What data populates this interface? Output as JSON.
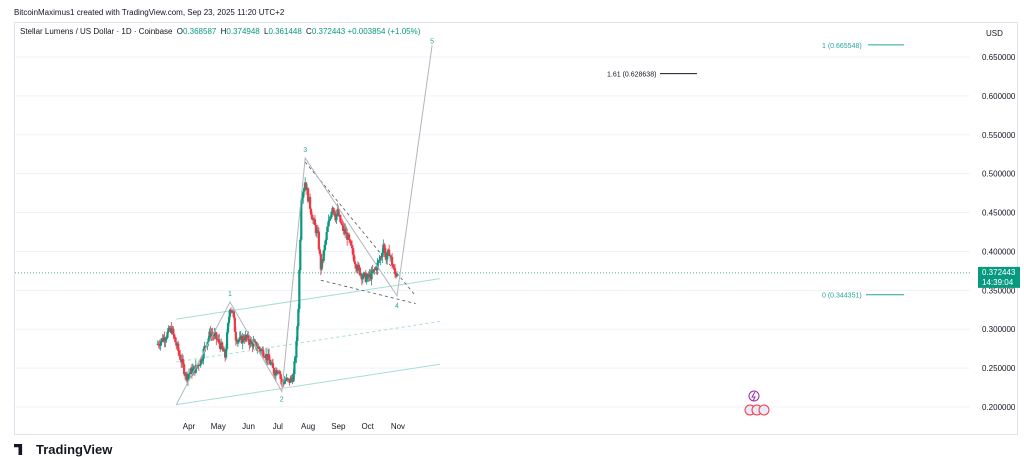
{
  "header": {
    "attribution": "BitcoinMaximus1 created with TradingView.com, Sep 23, 2025 11:20 UTC+2",
    "symbol": "Stellar Lumens / US Dollar · 1D · Coinbase",
    "ohlc": [
      {
        "key": "O",
        "value": "0.368587"
      },
      {
        "key": "H",
        "value": "0.374948"
      },
      {
        "key": "L",
        "value": "0.361448"
      },
      {
        "key": "C",
        "value": "0.372443"
      }
    ],
    "change": "+0.003854 (+1.05%)"
  },
  "price_axis": {
    "currency": "USD",
    "current_price": "0.372443",
    "countdown": "14:39:04"
  },
  "footer": {
    "logo_text": "TradingView"
  },
  "colors": {
    "up": "#089981",
    "down": "#f23645",
    "accent_green": "#26a69a",
    "channel": "#a7ddd5"
  },
  "chart_data": {
    "type": "candlestick",
    "title": "Stellar Lumens / US Dollar · 1D · Coinbase",
    "x_ticks": [
      "Apr",
      "May",
      "Jun",
      "Jul",
      "Aug",
      "Sep",
      "Oct",
      "Nov"
    ],
    "y_ticks": [
      "0.650000",
      "0.600000",
      "0.550000",
      "0.500000",
      "0.450000",
      "0.400000",
      "0.350000",
      "0.300000",
      "0.250000",
      "0.200000"
    ],
    "ylim": [
      0.185,
      0.68
    ],
    "xlim_days": [
      -75,
      225
    ],
    "series_anchor_closes": [
      [
        -75,
        0.28
      ],
      [
        -67,
        0.29
      ],
      [
        -60,
        0.3
      ],
      [
        -55,
        0.28
      ],
      [
        -50,
        0.26
      ],
      [
        -45,
        0.24
      ],
      [
        -40,
        0.245
      ],
      [
        -35,
        0.25
      ],
      [
        -30,
        0.26
      ],
      [
        -25,
        0.28
      ],
      [
        -20,
        0.295
      ],
      [
        -15,
        0.29
      ],
      [
        -10,
        0.28
      ],
      [
        -5,
        0.265
      ],
      [
        0,
        0.33
      ],
      [
        3,
        0.32
      ],
      [
        6,
        0.29
      ],
      [
        10,
        0.285
      ],
      [
        15,
        0.29
      ],
      [
        20,
        0.285
      ],
      [
        25,
        0.28
      ],
      [
        30,
        0.275
      ],
      [
        35,
        0.27
      ],
      [
        40,
        0.26
      ],
      [
        45,
        0.245
      ],
      [
        50,
        0.25
      ],
      [
        53,
        0.23
      ],
      [
        57,
        0.235
      ],
      [
        60,
        0.232
      ],
      [
        65,
        0.24
      ],
      [
        68,
        0.28
      ],
      [
        70,
        0.33
      ],
      [
        72,
        0.42
      ],
      [
        73,
        0.47
      ],
      [
        75,
        0.48
      ],
      [
        77,
        0.49
      ],
      [
        80,
        0.47
      ],
      [
        85,
        0.44
      ],
      [
        90,
        0.42
      ],
      [
        93,
        0.38
      ],
      [
        95,
        0.39
      ],
      [
        100,
        0.43
      ],
      [
        105,
        0.46
      ],
      [
        108,
        0.445
      ],
      [
        110,
        0.45
      ],
      [
        115,
        0.43
      ],
      [
        120,
        0.42
      ],
      [
        125,
        0.4
      ],
      [
        130,
        0.38
      ],
      [
        135,
        0.37
      ],
      [
        140,
        0.365
      ],
      [
        145,
        0.37
      ],
      [
        150,
        0.38
      ],
      [
        155,
        0.395
      ],
      [
        157,
        0.41
      ],
      [
        160,
        0.39
      ],
      [
        163,
        0.4
      ],
      [
        166,
        0.385
      ],
      [
        169,
        0.37
      ],
      [
        171,
        0.3725
      ]
    ],
    "annotations": [
      {
        "label": "1",
        "type": "wave"
      },
      {
        "label": "2",
        "type": "wave"
      },
      {
        "label": "3",
        "type": "wave"
      },
      {
        "label": "4",
        "type": "wave"
      },
      {
        "label": "5",
        "type": "wave"
      },
      {
        "label": "1.61 (0.628638)",
        "price": 0.628638
      },
      {
        "label": "1 (0.665548)",
        "price": 0.665548
      },
      {
        "label": "0 (0.344351)",
        "price": 0.344351
      }
    ],
    "wave_points": {
      "0": [
        -55,
        0.203
      ],
      "1": [
        0,
        0.335
      ],
      "2": [
        53,
        0.22
      ],
      "3": [
        77,
        0.52
      ],
      "4": [
        171,
        0.343
      ],
      "5": [
        207,
        0.665
      ]
    },
    "grid": true,
    "legend": "top-left"
  }
}
